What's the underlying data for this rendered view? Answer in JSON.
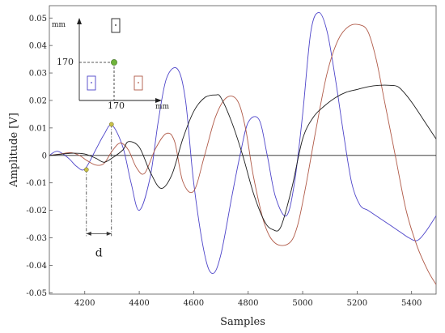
{
  "chart_data": {
    "type": "line",
    "title": "",
    "xlabel": "Samples",
    "ylabel": "Amplitude [V]",
    "xlim": [
      4070,
      5490
    ],
    "ylim": [
      -0.0505,
      0.0545
    ],
    "x_ticks": [
      4200,
      4400,
      4600,
      4800,
      5000,
      5200,
      5400
    ],
    "y_ticks": [
      -0.05,
      -0.04,
      -0.03,
      -0.02,
      -0.01,
      0,
      0.01,
      0.02,
      0.03,
      0.04,
      0.05
    ],
    "y_tick_labels": [
      "-0.05",
      "-0.04",
      "-0.03",
      "-0.02",
      "-0.01",
      "0",
      "0.01",
      "0.02",
      "0.03",
      "0.04",
      "0.05"
    ],
    "grid": false,
    "series": [
      {
        "color": "#4d44c9",
        "x": [
          4070,
          4100,
          4140,
          4170,
          4200,
          4240,
          4270,
          4300,
          4340,
          4370,
          4400,
          4440,
          4470,
          4500,
          4540,
          4570,
          4600,
          4640,
          4670,
          4700,
          4740,
          4770,
          4800,
          4840,
          4870,
          4900,
          4940,
          4970,
          5000,
          5030,
          5060,
          5090,
          5120,
          5150,
          5180,
          5210,
          5240,
          5270,
          5300,
          5330,
          5360,
          5390,
          5420,
          5450,
          5490
        ],
        "y": [
          0.0,
          0.0015,
          -0.001,
          -0.004,
          -0.005,
          0.002,
          0.0075,
          0.011,
          0.003,
          -0.01,
          -0.02,
          -0.008,
          0.0125,
          0.028,
          0.0315,
          0.02,
          -0.01,
          -0.036,
          -0.043,
          -0.036,
          -0.015,
          0.0,
          0.012,
          0.013,
          0.0,
          -0.015,
          -0.022,
          -0.01,
          0.015,
          0.045,
          0.052,
          0.045,
          0.028,
          0.008,
          -0.01,
          -0.018,
          -0.02,
          -0.022,
          -0.024,
          -0.026,
          -0.028,
          -0.03,
          -0.031,
          -0.028,
          -0.022
        ]
      },
      {
        "color": "#b05a48",
        "x": [
          4070,
          4110,
          4150,
          4180,
          4210,
          4240,
          4270,
          4300,
          4330,
          4360,
          4390,
          4420,
          4460,
          4500,
          4530,
          4560,
          4600,
          4640,
          4680,
          4720,
          4760,
          4790,
          4820,
          4860,
          4900,
          4950,
          4980,
          5010,
          5050,
          5090,
          5130,
          5170,
          5210,
          5240,
          5270,
          5300,
          5340,
          5380,
          5420,
          5460,
          5490
        ],
        "y": [
          0.0,
          0.0005,
          0.001,
          0.0,
          -0.002,
          -0.0035,
          -0.003,
          0.0015,
          0.0045,
          0.002,
          -0.0045,
          -0.0065,
          0.0025,
          0.008,
          0.005,
          -0.0095,
          -0.013,
          0.0,
          0.014,
          0.021,
          0.02,
          0.01,
          -0.008,
          -0.025,
          -0.032,
          -0.032,
          -0.026,
          -0.012,
          0.01,
          0.03,
          0.042,
          0.047,
          0.0475,
          0.045,
          0.035,
          0.02,
          0.0,
          -0.02,
          -0.033,
          -0.042,
          -0.047
        ]
      },
      {
        "color": "#1c1c1c",
        "x": [
          4070,
          4120,
          4160,
          4200,
          4240,
          4270,
          4300,
          4340,
          4360,
          4400,
          4440,
          4480,
          4520,
          4560,
          4600,
          4640,
          4680,
          4700,
          4740,
          4780,
          4820,
          4860,
          4890,
          4920,
          4960,
          5000,
          5040,
          5080,
          5120,
          5160,
          5200,
          5240,
          5280,
          5320,
          5350,
          5380,
          5410,
          5450,
          5490
        ],
        "y": [
          0.0,
          0.0005,
          0.0008,
          0.0005,
          -0.001,
          -0.0025,
          -0.001,
          0.002,
          0.005,
          0.003,
          -0.006,
          -0.012,
          -0.007,
          0.006,
          0.016,
          0.021,
          0.022,
          0.021,
          0.012,
          0.0,
          -0.014,
          -0.024,
          -0.027,
          -0.026,
          -0.012,
          0.006,
          0.014,
          0.018,
          0.021,
          0.023,
          0.024,
          0.025,
          0.0255,
          0.0255,
          0.025,
          0.022,
          0.018,
          0.012,
          0.006
        ]
      }
    ],
    "markers": [
      {
        "x": 4206,
        "y": -0.0052,
        "color": "#c8c04a"
      },
      {
        "x": 4298,
        "y": 0.0113,
        "color": "#c8c04a"
      }
    ],
    "annotation": {
      "label": "d"
    },
    "inset": {
      "x_unit": "mm",
      "y_unit": "mm",
      "x_value_label": "170",
      "y_value_label": "170",
      "boxes": [
        {
          "color": "#1c1c1c"
        },
        {
          "color": "#4d44c9"
        },
        {
          "color": "#b05a48"
        }
      ],
      "point_color": "#6fb33a"
    }
  }
}
